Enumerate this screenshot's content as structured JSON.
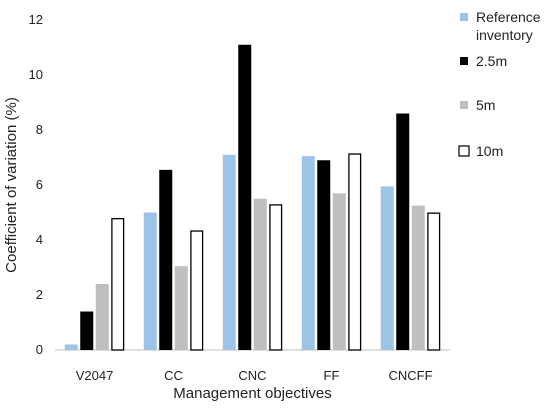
{
  "chart_data": {
    "type": "bar",
    "xlabel": "Management objectives",
    "ylabel": "Coefficient of variation (%)",
    "categories": [
      "V2047",
      "CC",
      "CNC",
      "FF",
      "CNCFF"
    ],
    "ylim": [
      0,
      12
    ],
    "yticks": [
      0,
      2,
      4,
      6,
      8,
      10,
      12
    ],
    "grid": false,
    "legend_position": "right",
    "series": [
      {
        "name": "Reference inventory",
        "values": [
          0.2,
          5.0,
          7.1,
          7.05,
          5.95
        ],
        "color": "#9dc3e6",
        "outline": false
      },
      {
        "name": "2.5m",
        "values": [
          1.4,
          6.55,
          11.1,
          6.9,
          8.6
        ],
        "color": "#000000",
        "outline": false
      },
      {
        "name": "5m",
        "values": [
          2.4,
          3.05,
          5.5,
          5.7,
          5.25
        ],
        "color": "#bfbfbf",
        "outline": false
      },
      {
        "name": "10m",
        "values": [
          4.8,
          4.35,
          5.3,
          7.15,
          5.0
        ],
        "color": "#ffffff",
        "outline": true
      }
    ]
  }
}
